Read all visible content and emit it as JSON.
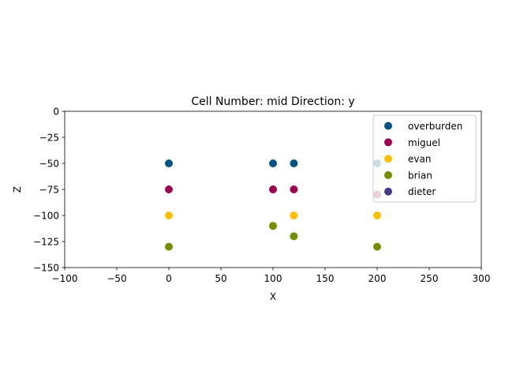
{
  "chart_data": {
    "type": "scatter",
    "title": "Cell Number: mid Direction: y",
    "xlabel": "X",
    "ylabel": "Z",
    "xlim": [
      -100,
      300
    ],
    "ylim": [
      -150,
      0
    ],
    "xticks": [
      -100,
      -50,
      0,
      50,
      100,
      150,
      200,
      250,
      300
    ],
    "yticks": [
      0,
      -25,
      -50,
      -75,
      -100,
      -125,
      -150
    ],
    "xtick_labels": [
      "−100",
      "−50",
      "0",
      "50",
      "100",
      "150",
      "200",
      "250",
      "300"
    ],
    "ytick_labels": [
      "0",
      "−25",
      "−50",
      "−75",
      "−100",
      "−125",
      "−150"
    ],
    "grid": false,
    "legend_position": "top-right",
    "series": [
      {
        "name": "overburden",
        "color": "#015482",
        "points": [
          {
            "x": 0,
            "y": -50
          },
          {
            "x": 100,
            "y": -50
          },
          {
            "x": 120,
            "y": -50
          },
          {
            "x": 200,
            "y": -50
          }
        ]
      },
      {
        "name": "miguel",
        "color": "#9f0052",
        "points": [
          {
            "x": 0,
            "y": -75
          },
          {
            "x": 100,
            "y": -75
          },
          {
            "x": 120,
            "y": -75
          },
          {
            "x": 200,
            "y": -80
          }
        ]
      },
      {
        "name": "evan",
        "color": "#ffbe00",
        "points": [
          {
            "x": 0,
            "y": -100
          },
          {
            "x": 120,
            "y": -100
          },
          {
            "x": 200,
            "y": -100
          }
        ]
      },
      {
        "name": "brian",
        "color": "#728f02",
        "points": [
          {
            "x": 0,
            "y": -130
          },
          {
            "x": 100,
            "y": -110
          },
          {
            "x": 120,
            "y": -120
          },
          {
            "x": 200,
            "y": -130
          }
        ]
      },
      {
        "name": "dieter",
        "color": "#443988",
        "points": []
      }
    ]
  }
}
